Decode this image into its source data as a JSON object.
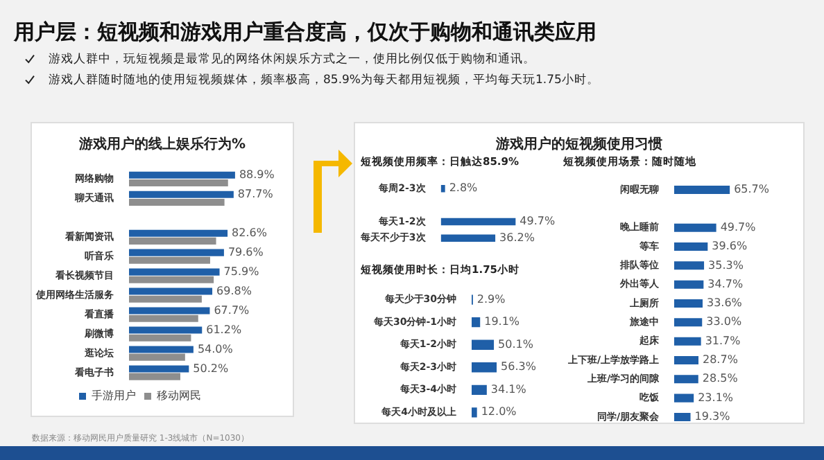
{
  "chart_data": [
    {
      "type": "other",
      "title": "用户层：短视频和游戏用户重合度高，仅次于购物和通讯类应用",
      "annotations": [
        "游戏人群中，玩短视频是最常见的网络休闲娱乐方式之一，使用比例仅低于购物和通讯。",
        "游戏人群随时随地的使用短视频媒体，频率极高，85.9%为每天都用短视频，平均每天玩1.75小时。"
      ]
    },
    {
      "type": "bar",
      "orientation": "horizontal",
      "title": "游戏用户的线上娱乐行为%",
      "categories": [
        "网络购物",
        "聊天通讯",
        null,
        "看新闻资讯",
        "听音乐",
        "看长视频节目",
        "使用网络生活服务",
        "看直播",
        "刷微博",
        "逛论坛",
        "看电子书"
      ],
      "series": [
        {
          "name": "手游用户",
          "color": "#1f5fa8",
          "values": [
            88.9,
            87.7,
            null,
            82.6,
            79.6,
            75.9,
            69.8,
            67.7,
            61.2,
            54.0,
            50.2
          ],
          "value_labels": [
            "88.9%",
            "87.7%",
            null,
            "82.6%",
            "79.6%",
            "75.9%",
            "69.8%",
            "67.7%",
            "61.2%",
            "54.0%",
            "50.2%"
          ]
        },
        {
          "name": "移动网民",
          "color": "#8e8e8e",
          "values": [
            83,
            80,
            null,
            73,
            68,
            71,
            61,
            58,
            52,
            47,
            43
          ]
        }
      ],
      "legend": "bottom",
      "tick_labels": "y",
      "annotations": [
        "数据来源：移动网民用户质量研究 1-3线城市（N=1030）"
      ]
    },
    {
      "type": "other",
      "title": "游戏用户的短视频使用习惯"
    },
    {
      "type": "bar",
      "orientation": "horizontal",
      "title": "短视频使用频率：日触达85.9%",
      "categories": [
        "每周2-3次",
        null,
        "每天1-2次",
        "每天不少于3次"
      ],
      "values": [
        2.8,
        null,
        49.7,
        36.2
      ],
      "value_labels": [
        "2.8%",
        null,
        "49.7%",
        "36.2%"
      ],
      "color": "#1f5fa8",
      "tick_labels": "y"
    },
    {
      "type": "bar",
      "orientation": "horizontal",
      "title": "短视频使用时长：日均1.75小时",
      "categories": [
        "每天少于30分钟",
        "每天30分钟-1小时",
        "每天1-2小时",
        "每天2-3小时",
        "每天3-4小时",
        "每天4小时及以上"
      ],
      "values": [
        2.9,
        19.1,
        50.1,
        56.3,
        34.1,
        12.0
      ],
      "value_labels": [
        "2.9%",
        "19.1%",
        "50.1%",
        "56.3%",
        "34.1%",
        "12.0%"
      ],
      "color": "#1f5fa8",
      "tick_labels": "y"
    },
    {
      "type": "bar",
      "orientation": "horizontal",
      "title": "短视频使用场景：随时随地",
      "categories": [
        "闲暇无聊",
        null,
        "晚上睡前",
        "等车",
        "排队等位",
        "外出等人",
        "上厕所",
        "旅途中",
        "起床",
        "上下班/上学放学路上",
        "上班/学习的间隙",
        "吃饭",
        "同学/朋友聚会"
      ],
      "values": [
        65.7,
        null,
        49.7,
        39.6,
        35.3,
        34.7,
        33.6,
        33.0,
        31.7,
        28.7,
        28.5,
        23.1,
        19.3
      ],
      "value_labels": [
        "65.7%",
        null,
        "49.7%",
        "39.6%",
        "35.3%",
        "34.7%",
        "33.6%",
        "33.0%",
        "31.7%",
        "28.7%",
        "28.5%",
        "23.1%",
        "19.3%"
      ],
      "color": "#1f5fa8",
      "tick_labels": "y"
    }
  ]
}
